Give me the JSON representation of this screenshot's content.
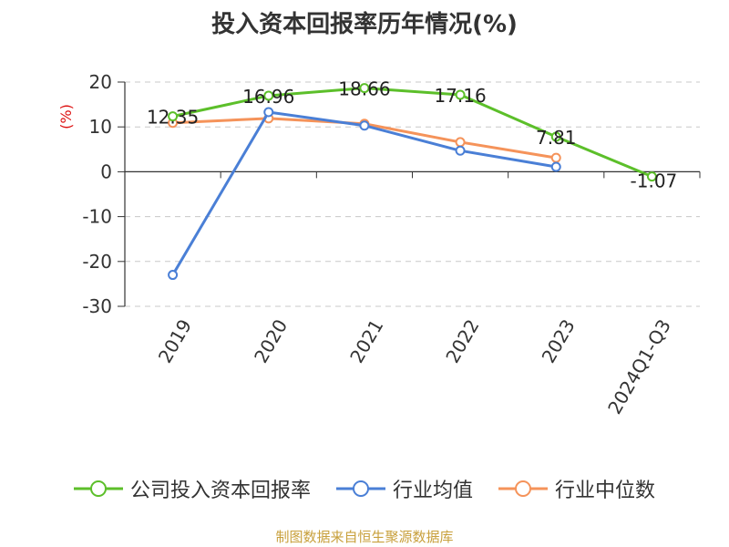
{
  "chart_data": {
    "type": "line",
    "title": "投入资本回报率历年情况(%)",
    "ylabel": "(%)",
    "xlabel": "",
    "categories": [
      "2019",
      "2020",
      "2021",
      "2022",
      "2023",
      "2024Q1-Q3"
    ],
    "ylim": [
      -30,
      20
    ],
    "yticks": [
      20,
      10,
      0,
      -10,
      -20,
      -30
    ],
    "grid": true,
    "legend_position": "bottom",
    "series": [
      {
        "name": "公司投入资本回报率",
        "color": "#5cbf2a",
        "values": [
          12.35,
          16.96,
          18.66,
          17.16,
          7.81,
          -1.07
        ],
        "labels": [
          "12.35",
          "16.96",
          "18.66",
          "17.16",
          "7.81",
          "-1.07"
        ]
      },
      {
        "name": "行业均值",
        "color": "#4a7fd6",
        "values": [
          -23.0,
          13.3,
          10.3,
          4.7,
          1.1,
          null
        ]
      },
      {
        "name": "行业中位数",
        "color": "#f5935a",
        "values": [
          10.9,
          11.9,
          10.7,
          6.6,
          3.1,
          null
        ]
      }
    ]
  },
  "source_text": "制图数据来自恒生聚源数据库"
}
